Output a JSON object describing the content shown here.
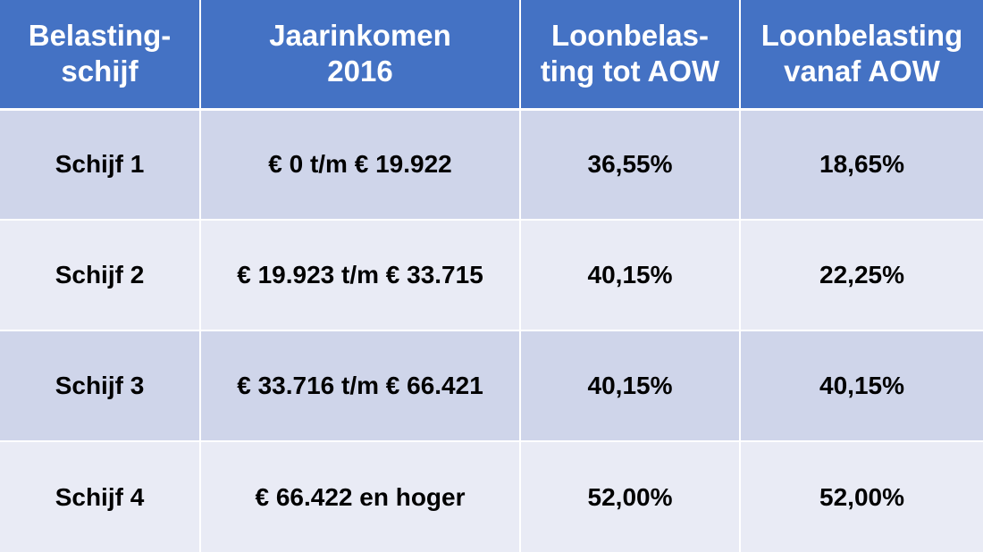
{
  "table": {
    "headers": [
      {
        "line1": "Belasting-",
        "line2": "schijf"
      },
      {
        "line1": "Jaarinkomen",
        "line2": "2016"
      },
      {
        "line1": "Loonbelas-",
        "line2": "ting tot AOW"
      },
      {
        "line1": "Loonbelasting",
        "line2": "vanaf AOW"
      }
    ],
    "rows": [
      {
        "schijf": "Schijf 1",
        "inkomen": "€ 0 t/m € 19.922",
        "tot_aow": "36,55%",
        "vanaf_aow": "18,65%"
      },
      {
        "schijf": "Schijf 2",
        "inkomen": "€ 19.923 t/m € 33.715",
        "tot_aow": "40,15%",
        "vanaf_aow": "22,25%"
      },
      {
        "schijf": "Schijf 3",
        "inkomen": "€ 33.716 t/m € 66.421",
        "tot_aow": "40,15%",
        "vanaf_aow": "40,15%"
      },
      {
        "schijf": "Schijf 4",
        "inkomen": "€ 66.422 en hoger",
        "tot_aow": "52,00%",
        "vanaf_aow": "52,00%"
      }
    ]
  },
  "colors": {
    "header_bg": "#4472c4",
    "row_odd_bg": "#cfd5ea",
    "row_even_bg": "#e9ebf5"
  }
}
